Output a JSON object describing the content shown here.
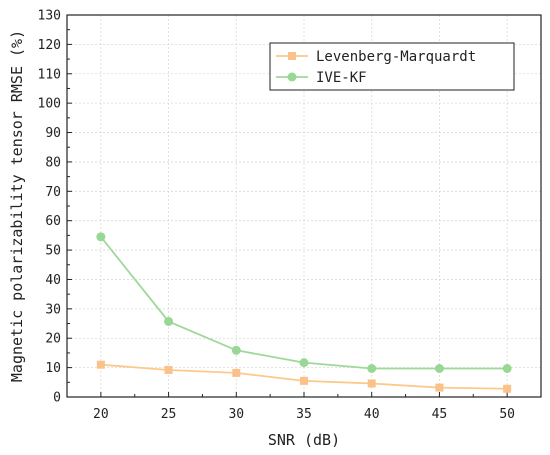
{
  "chart_data": {
    "type": "line",
    "xlabel": "SNR (dB)",
    "ylabel": "Magnetic polarizability tensor RMSE (%)",
    "x": [
      20,
      25,
      30,
      35,
      40,
      45,
      50
    ],
    "xlim": [
      17.5,
      52.5
    ],
    "ylim": [
      0,
      130
    ],
    "xticks": [
      20,
      25,
      30,
      35,
      40,
      45,
      50
    ],
    "yticks": [
      0,
      10,
      20,
      30,
      40,
      50,
      60,
      70,
      80,
      90,
      100,
      110,
      120,
      130
    ],
    "grid": true,
    "legend_position": "top-right",
    "series": [
      {
        "name": "Levenberg-Marquardt",
        "marker": "square",
        "color": "#FBC98A",
        "marker_color": "#FAC28A",
        "values": [
          11.0,
          9.2,
          8.2,
          5.5,
          4.6,
          3.2,
          2.8
        ]
      },
      {
        "name": "IVE-KF",
        "marker": "circle",
        "color": "#9ED99A",
        "marker_color": "#98D894",
        "values": [
          54.5,
          25.7,
          15.9,
          11.7,
          9.7,
          9.7,
          9.7
        ]
      }
    ]
  }
}
